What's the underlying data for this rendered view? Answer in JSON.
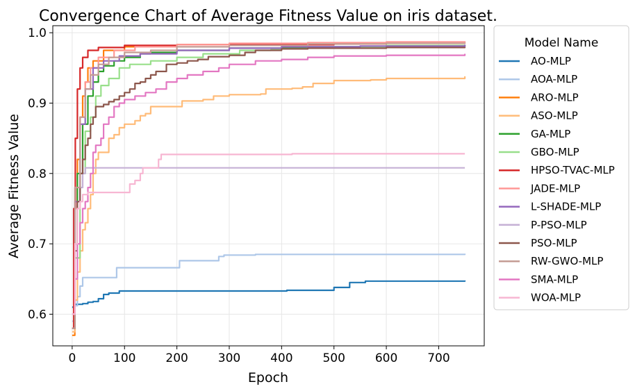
{
  "chart_data": {
    "type": "line",
    "title": "Convergence Chart of Average Fitness Value on iris dataset.",
    "xlabel": "Epoch",
    "ylabel": "Average Fitness Value",
    "xlim": [
      -37,
      787
    ],
    "ylim": [
      0.555,
      1.01
    ],
    "xticks": [
      0,
      100,
      200,
      300,
      400,
      500,
      600,
      700
    ],
    "yticks": [
      0.6,
      0.7,
      0.8,
      0.9,
      1.0
    ],
    "ytick_labels": [
      "0.6",
      "0.7",
      "0.8",
      "0.9",
      "1.0"
    ],
    "grid": true,
    "legend": {
      "title": "Model Name",
      "position": "outside-right"
    },
    "series": [
      {
        "name": "AO-MLP",
        "color": "#1f77b4",
        "points": [
          [
            0,
            0.61
          ],
          [
            5,
            0.614
          ],
          [
            20,
            0.615
          ],
          [
            30,
            0.617
          ],
          [
            40,
            0.618
          ],
          [
            50,
            0.622
          ],
          [
            60,
            0.628
          ],
          [
            70,
            0.63
          ],
          [
            80,
            0.63
          ],
          [
            90,
            0.633
          ],
          [
            200,
            0.633
          ],
          [
            400,
            0.633
          ],
          [
            410,
            0.634
          ],
          [
            480,
            0.634
          ],
          [
            500,
            0.638
          ],
          [
            520,
            0.638
          ],
          [
            530,
            0.645
          ],
          [
            550,
            0.645
          ],
          [
            560,
            0.647
          ],
          [
            700,
            0.647
          ],
          [
            750,
            0.648
          ]
        ]
      },
      {
        "name": "AOA-MLP",
        "color": "#aec7e8",
        "points": [
          [
            0,
            0.59
          ],
          [
            5,
            0.612
          ],
          [
            10,
            0.625
          ],
          [
            15,
            0.64
          ],
          [
            20,
            0.652
          ],
          [
            40,
            0.652
          ],
          [
            80,
            0.652
          ],
          [
            85,
            0.666
          ],
          [
            200,
            0.666
          ],
          [
            205,
            0.676
          ],
          [
            270,
            0.676
          ],
          [
            280,
            0.682
          ],
          [
            290,
            0.684
          ],
          [
            350,
            0.685
          ],
          [
            750,
            0.686
          ]
        ]
      },
      {
        "name": "ARO-MLP",
        "color": "#ff7f0e",
        "points": [
          [
            0,
            0.57
          ],
          [
            5,
            0.7
          ],
          [
            10,
            0.82
          ],
          [
            15,
            0.88
          ],
          [
            20,
            0.91
          ],
          [
            25,
            0.93
          ],
          [
            30,
            0.95
          ],
          [
            40,
            0.96
          ],
          [
            60,
            0.975
          ],
          [
            100,
            0.98
          ],
          [
            200,
            0.983
          ],
          [
            300,
            0.983
          ],
          [
            450,
            0.984
          ],
          [
            600,
            0.985
          ],
          [
            750,
            0.986
          ]
        ]
      },
      {
        "name": "ASO-MLP",
        "color": "#ffbb78",
        "points": [
          [
            0,
            0.575
          ],
          [
            5,
            0.62
          ],
          [
            10,
            0.66
          ],
          [
            15,
            0.69
          ],
          [
            20,
            0.72
          ],
          [
            25,
            0.73
          ],
          [
            30,
            0.75
          ],
          [
            35,
            0.77
          ],
          [
            40,
            0.8
          ],
          [
            45,
            0.82
          ],
          [
            50,
            0.83
          ],
          [
            60,
            0.83
          ],
          [
            70,
            0.85
          ],
          [
            80,
            0.855
          ],
          [
            90,
            0.865
          ],
          [
            100,
            0.87
          ],
          [
            120,
            0.875
          ],
          [
            130,
            0.882
          ],
          [
            140,
            0.885
          ],
          [
            150,
            0.895
          ],
          [
            200,
            0.895
          ],
          [
            210,
            0.903
          ],
          [
            250,
            0.905
          ],
          [
            270,
            0.91
          ],
          [
            300,
            0.912
          ],
          [
            360,
            0.913
          ],
          [
            370,
            0.92
          ],
          [
            420,
            0.921
          ],
          [
            440,
            0.923
          ],
          [
            460,
            0.928
          ],
          [
            500,
            0.932
          ],
          [
            570,
            0.933
          ],
          [
            600,
            0.935
          ],
          [
            740,
            0.935
          ],
          [
            750,
            0.938
          ]
        ]
      },
      {
        "name": "GA-MLP",
        "color": "#2ca02c",
        "points": [
          [
            0,
            0.58
          ],
          [
            5,
            0.7
          ],
          [
            10,
            0.8
          ],
          [
            20,
            0.87
          ],
          [
            30,
            0.91
          ],
          [
            40,
            0.93
          ],
          [
            50,
            0.945
          ],
          [
            60,
            0.953
          ],
          [
            80,
            0.96
          ],
          [
            100,
            0.965
          ],
          [
            130,
            0.97
          ],
          [
            150,
            0.972
          ],
          [
            200,
            0.975
          ],
          [
            300,
            0.978
          ],
          [
            450,
            0.98
          ],
          [
            600,
            0.981
          ],
          [
            750,
            0.982
          ]
        ]
      },
      {
        "name": "GBO-MLP",
        "color": "#98df8a",
        "points": [
          [
            0,
            0.58
          ],
          [
            5,
            0.68
          ],
          [
            15,
            0.8
          ],
          [
            25,
            0.86
          ],
          [
            35,
            0.88
          ],
          [
            45,
            0.91
          ],
          [
            55,
            0.925
          ],
          [
            70,
            0.935
          ],
          [
            90,
            0.95
          ],
          [
            110,
            0.955
          ],
          [
            150,
            0.96
          ],
          [
            200,
            0.965
          ],
          [
            250,
            0.97
          ],
          [
            320,
            0.975
          ],
          [
            380,
            0.977
          ],
          [
            450,
            0.98
          ],
          [
            600,
            0.982
          ],
          [
            750,
            0.983
          ]
        ]
      },
      {
        "name": "HPSO-TVAC-MLP",
        "color": "#d62728",
        "points": [
          [
            0,
            0.58
          ],
          [
            3,
            0.75
          ],
          [
            6,
            0.85
          ],
          [
            10,
            0.92
          ],
          [
            15,
            0.95
          ],
          [
            20,
            0.965
          ],
          [
            30,
            0.975
          ],
          [
            50,
            0.979
          ],
          [
            100,
            0.982
          ],
          [
            200,
            0.983
          ],
          [
            350,
            0.983
          ],
          [
            500,
            0.984
          ],
          [
            550,
            0.984
          ]
        ]
      },
      {
        "name": "JADE-MLP",
        "color": "#ff9896",
        "points": [
          [
            0,
            0.58
          ],
          [
            5,
            0.75
          ],
          [
            15,
            0.88
          ],
          [
            25,
            0.93
          ],
          [
            35,
            0.95
          ],
          [
            50,
            0.965
          ],
          [
            80,
            0.975
          ],
          [
            120,
            0.98
          ],
          [
            200,
            0.983
          ],
          [
            300,
            0.985
          ],
          [
            450,
            0.986
          ],
          [
            600,
            0.987
          ],
          [
            750,
            0.988
          ]
        ]
      },
      {
        "name": "L-SHADE-MLP",
        "color": "#9467bd",
        "points": [
          [
            0,
            0.58
          ],
          [
            5,
            0.76
          ],
          [
            15,
            0.87
          ],
          [
            25,
            0.92
          ],
          [
            40,
            0.95
          ],
          [
            60,
            0.96
          ],
          [
            90,
            0.967
          ],
          [
            130,
            0.97
          ],
          [
            200,
            0.975
          ],
          [
            300,
            0.978
          ],
          [
            400,
            0.98
          ],
          [
            550,
            0.981
          ],
          [
            750,
            0.983
          ]
        ]
      },
      {
        "name": "P-PSO-MLP",
        "color": "#c5b0d5",
        "points": [
          [
            0,
            0.6
          ],
          [
            5,
            0.7
          ],
          [
            10,
            0.76
          ],
          [
            15,
            0.78
          ],
          [
            20,
            0.8
          ],
          [
            25,
            0.808
          ],
          [
            100,
            0.808
          ],
          [
            300,
            0.808
          ],
          [
            500,
            0.808
          ],
          [
            750,
            0.808
          ]
        ]
      },
      {
        "name": "PSO-MLP",
        "color": "#8c564b",
        "points": [
          [
            0,
            0.58
          ],
          [
            5,
            0.69
          ],
          [
            10,
            0.76
          ],
          [
            15,
            0.8
          ],
          [
            20,
            0.82
          ],
          [
            25,
            0.84
          ],
          [
            30,
            0.85
          ],
          [
            35,
            0.87
          ],
          [
            40,
            0.88
          ],
          [
            45,
            0.895
          ],
          [
            60,
            0.898
          ],
          [
            70,
            0.902
          ],
          [
            80,
            0.905
          ],
          [
            90,
            0.91
          ],
          [
            100,
            0.915
          ],
          [
            110,
            0.92
          ],
          [
            120,
            0.928
          ],
          [
            130,
            0.93
          ],
          [
            140,
            0.935
          ],
          [
            150,
            0.94
          ],
          [
            160,
            0.945
          ],
          [
            180,
            0.955
          ],
          [
            200,
            0.957
          ],
          [
            220,
            0.96
          ],
          [
            240,
            0.962
          ],
          [
            260,
            0.966
          ],
          [
            300,
            0.968
          ],
          [
            330,
            0.972
          ],
          [
            350,
            0.975
          ],
          [
            400,
            0.977
          ],
          [
            450,
            0.978
          ],
          [
            600,
            0.979
          ],
          [
            750,
            0.98
          ]
        ]
      },
      {
        "name": "RW-GWO-MLP",
        "color": "#c49c94",
        "points": [
          [
            0,
            0.58
          ],
          [
            5,
            0.78
          ],
          [
            15,
            0.88
          ],
          [
            25,
            0.92
          ],
          [
            35,
            0.94
          ],
          [
            50,
            0.955
          ],
          [
            70,
            0.965
          ],
          [
            100,
            0.972
          ],
          [
            150,
            0.975
          ],
          [
            200,
            0.98
          ],
          [
            300,
            0.982
          ],
          [
            450,
            0.984
          ],
          [
            600,
            0.985
          ],
          [
            750,
            0.986
          ]
        ]
      },
      {
        "name": "SMA-MLP",
        "color": "#e377c2",
        "points": [
          [
            0,
            0.6
          ],
          [
            5,
            0.65
          ],
          [
            10,
            0.7
          ],
          [
            15,
            0.73
          ],
          [
            20,
            0.75
          ],
          [
            25,
            0.76
          ],
          [
            30,
            0.78
          ],
          [
            35,
            0.8
          ],
          [
            40,
            0.83
          ],
          [
            45,
            0.84
          ],
          [
            55,
            0.85
          ],
          [
            60,
            0.87
          ],
          [
            70,
            0.88
          ],
          [
            80,
            0.895
          ],
          [
            90,
            0.9
          ],
          [
            100,
            0.905
          ],
          [
            120,
            0.91
          ],
          [
            140,
            0.915
          ],
          [
            160,
            0.92
          ],
          [
            180,
            0.93
          ],
          [
            200,
            0.935
          ],
          [
            220,
            0.94
          ],
          [
            250,
            0.945
          ],
          [
            280,
            0.95
          ],
          [
            300,
            0.955
          ],
          [
            350,
            0.96
          ],
          [
            400,
            0.962
          ],
          [
            450,
            0.965
          ],
          [
            500,
            0.967
          ],
          [
            600,
            0.968
          ],
          [
            750,
            0.97
          ]
        ]
      },
      {
        "name": "WOA-MLP",
        "color": "#f7b6d2",
        "points": [
          [
            0,
            0.6
          ],
          [
            5,
            0.7
          ],
          [
            10,
            0.75
          ],
          [
            15,
            0.76
          ],
          [
            20,
            0.77
          ],
          [
            30,
            0.773
          ],
          [
            100,
            0.773
          ],
          [
            110,
            0.785
          ],
          [
            120,
            0.79
          ],
          [
            130,
            0.8
          ],
          [
            135,
            0.808
          ],
          [
            160,
            0.808
          ],
          [
            165,
            0.82
          ],
          [
            170,
            0.827
          ],
          [
            300,
            0.827
          ],
          [
            420,
            0.828
          ],
          [
            600,
            0.828
          ],
          [
            750,
            0.828
          ]
        ]
      }
    ]
  }
}
